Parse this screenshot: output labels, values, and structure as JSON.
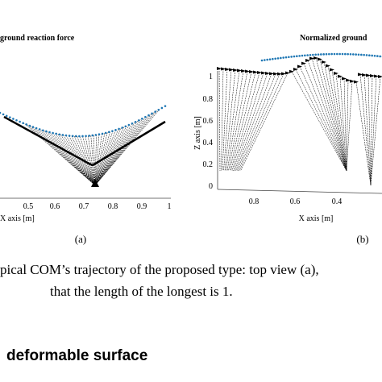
{
  "figure": {
    "panels": [
      {
        "title": "ground reaction force",
        "x_axis_label": "X axis [m]",
        "xticks": [
          "0.5",
          "0.6",
          "0.7",
          "0.8",
          "0.9",
          "1"
        ],
        "label": "(a)"
      },
      {
        "title": "Normalized ground",
        "x_axis_label": "X axis [m]",
        "z_axis_label": "Z axis [m]",
        "xticks": [
          "0.8",
          "0.6",
          "0.4"
        ],
        "zticks": [
          "1",
          "0.8",
          "0.6",
          "0.4",
          "0.2",
          "0"
        ],
        "label": "(b)"
      }
    ],
    "caption": [
      "pical COM’s trajectory of the proposed type: top view (a),",
      "that the length of the longest is 1."
    ]
  },
  "section_heading": "deformable surface"
}
